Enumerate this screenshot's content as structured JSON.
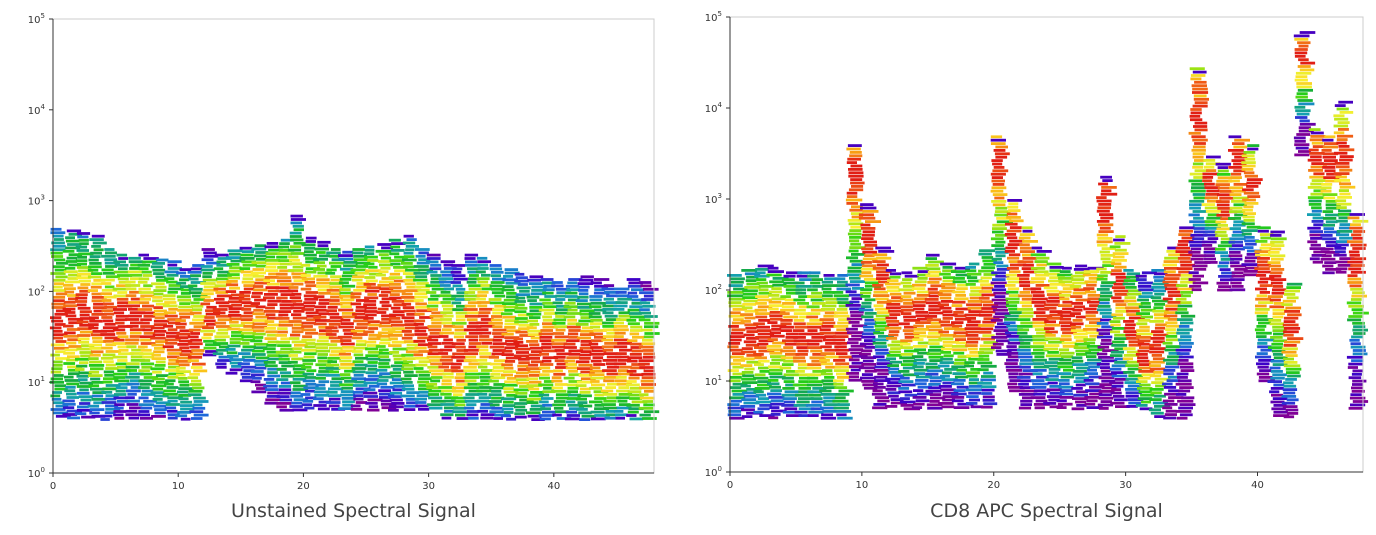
{
  "charts": [
    {
      "id": "left",
      "type": "heatmap",
      "xlabel": "Unstained Spectral Signal",
      "xlim": [
        0,
        48
      ],
      "ylim_log10": [
        0,
        5
      ],
      "x_ticks": [
        0,
        10,
        20,
        30,
        40
      ],
      "y_ticks": [
        {
          "exp": 0,
          "base": "10",
          "sup": "0"
        },
        {
          "exp": 1,
          "base": "10",
          "sup": "1"
        },
        {
          "exp": 2,
          "base": "10",
          "sup": "2"
        },
        {
          "exp": 3,
          "base": "10",
          "sup": "3"
        },
        {
          "exp": 4,
          "base": "10",
          "sup": "4"
        },
        {
          "exp": 5,
          "base": "10",
          "sup": "5"
        }
      ],
      "channels": [
        {
          "x": 0,
          "min": 4,
          "max": 500,
          "peak": 50
        },
        {
          "x": 1,
          "min": 4,
          "max": 480,
          "peak": 55
        },
        {
          "x": 2,
          "min": 4,
          "max": 450,
          "peak": 60
        },
        {
          "x": 3,
          "min": 4,
          "max": 420,
          "peak": 50
        },
        {
          "x": 4,
          "min": 4,
          "max": 300,
          "peak": 45
        },
        {
          "x": 5,
          "min": 4,
          "max": 260,
          "peak": 50
        },
        {
          "x": 6,
          "min": 4,
          "max": 240,
          "peak": 55
        },
        {
          "x": 7,
          "min": 4,
          "max": 260,
          "peak": 45
        },
        {
          "x": 8,
          "min": 4,
          "max": 230,
          "peak": 40
        },
        {
          "x": 9,
          "min": 4,
          "max": 220,
          "peak": 35
        },
        {
          "x": 10,
          "min": 4,
          "max": 180,
          "peak": 30
        },
        {
          "x": 11,
          "min": 4,
          "max": 200,
          "peak": 30
        },
        {
          "x": 12,
          "min": 20,
          "max": 300,
          "peak": 60
        },
        {
          "x": 13,
          "min": 15,
          "max": 260,
          "peak": 70
        },
        {
          "x": 14,
          "min": 12,
          "max": 290,
          "peak": 75
        },
        {
          "x": 15,
          "min": 10,
          "max": 310,
          "peak": 80
        },
        {
          "x": 16,
          "min": 8,
          "max": 330,
          "peak": 80
        },
        {
          "x": 17,
          "min": 6,
          "max": 350,
          "peak": 75
        },
        {
          "x": 18,
          "min": 5,
          "max": 380,
          "peak": 75
        },
        {
          "x": 19,
          "min": 5,
          "max": 700,
          "peak": 70
        },
        {
          "x": 20,
          "min": 5,
          "max": 400,
          "peak": 65
        },
        {
          "x": 21,
          "min": 5,
          "max": 360,
          "peak": 60
        },
        {
          "x": 22,
          "min": 5,
          "max": 300,
          "peak": 55
        },
        {
          "x": 23,
          "min": 5,
          "max": 280,
          "peak": 40
        },
        {
          "x": 24,
          "min": 5,
          "max": 300,
          "peak": 65
        },
        {
          "x": 25,
          "min": 5,
          "max": 320,
          "peak": 70
        },
        {
          "x": 26,
          "min": 5,
          "max": 340,
          "peak": 70
        },
        {
          "x": 27,
          "min": 5,
          "max": 380,
          "peak": 65
        },
        {
          "x": 28,
          "min": 5,
          "max": 420,
          "peak": 55
        },
        {
          "x": 29,
          "min": 5,
          "max": 300,
          "peak": 40
        },
        {
          "x": 30,
          "min": 5,
          "max": 260,
          "peak": 30
        },
        {
          "x": 31,
          "min": 4,
          "max": 220,
          "peak": 25
        },
        {
          "x": 32,
          "min": 4,
          "max": 200,
          "peak": 20
        },
        {
          "x": 33,
          "min": 4,
          "max": 260,
          "peak": 35
        },
        {
          "x": 34,
          "min": 4,
          "max": 240,
          "peak": 40
        },
        {
          "x": 35,
          "min": 4,
          "max": 200,
          "peak": 30
        },
        {
          "x": 36,
          "min": 4,
          "max": 180,
          "peak": 25
        },
        {
          "x": 37,
          "min": 4,
          "max": 160,
          "peak": 22
        },
        {
          "x": 38,
          "min": 4,
          "max": 150,
          "peak": 20
        },
        {
          "x": 39,
          "min": 4,
          "max": 140,
          "peak": 25
        },
        {
          "x": 40,
          "min": 4,
          "max": 130,
          "peak": 20
        },
        {
          "x": 41,
          "min": 4,
          "max": 140,
          "peak": 25
        },
        {
          "x": 42,
          "min": 4,
          "max": 150,
          "peak": 20
        },
        {
          "x": 43,
          "min": 4,
          "max": 140,
          "peak": 20
        },
        {
          "x": 44,
          "min": 4,
          "max": 120,
          "peak": 18
        },
        {
          "x": 45,
          "min": 4,
          "max": 110,
          "peak": 20
        },
        {
          "x": 46,
          "min": 4,
          "max": 140,
          "peak": 18
        },
        {
          "x": 47,
          "min": 4,
          "max": 130,
          "peak": 15
        }
      ]
    },
    {
      "id": "right",
      "type": "heatmap",
      "xlabel": "CD8 APC Spectral Signal",
      "xlim": [
        0,
        48
      ],
      "ylim_log10": [
        0,
        5
      ],
      "x_ticks": [
        0,
        10,
        20,
        30,
        40
      ],
      "y_ticks": [
        {
          "exp": 0,
          "base": "10",
          "sup": "0"
        },
        {
          "exp": 1,
          "base": "10",
          "sup": "1"
        },
        {
          "exp": 2,
          "base": "10",
          "sup": "2"
        },
        {
          "exp": 3,
          "base": "10",
          "sup": "3"
        },
        {
          "exp": 4,
          "base": "10",
          "sup": "4"
        },
        {
          "exp": 5,
          "base": "10",
          "sup": "5"
        }
      ],
      "channels": [
        {
          "x": 0,
          "min": 4,
          "max": 150,
          "peak": 30
        },
        {
          "x": 1,
          "min": 4,
          "max": 170,
          "peak": 35
        },
        {
          "x": 2,
          "min": 4,
          "max": 190,
          "peak": 35
        },
        {
          "x": 3,
          "min": 4,
          "max": 180,
          "peak": 40
        },
        {
          "x": 4,
          "min": 4,
          "max": 160,
          "peak": 35
        },
        {
          "x": 5,
          "min": 4,
          "max": 160,
          "peak": 30
        },
        {
          "x": 6,
          "min": 4,
          "max": 160,
          "peak": 30
        },
        {
          "x": 7,
          "min": 4,
          "max": 150,
          "peak": 30
        },
        {
          "x": 8,
          "min": 4,
          "max": 150,
          "peak": 25
        },
        {
          "x": 9,
          "min": 10,
          "max": 4000,
          "peak": 2000
        },
        {
          "x": 10,
          "min": 8,
          "max": 900,
          "peak": 400
        },
        {
          "x": 11,
          "min": 5,
          "max": 300,
          "peak": 150
        },
        {
          "x": 12,
          "min": 5,
          "max": 170,
          "peak": 60
        },
        {
          "x": 13,
          "min": 5,
          "max": 160,
          "peak": 50
        },
        {
          "x": 14,
          "min": 5,
          "max": 180,
          "peak": 60
        },
        {
          "x": 15,
          "min": 5,
          "max": 250,
          "peak": 70
        },
        {
          "x": 16,
          "min": 5,
          "max": 200,
          "peak": 60
        },
        {
          "x": 17,
          "min": 5,
          "max": 180,
          "peak": 50
        },
        {
          "x": 18,
          "min": 5,
          "max": 200,
          "peak": 45
        },
        {
          "x": 19,
          "min": 5,
          "max": 280,
          "peak": 60
        },
        {
          "x": 20,
          "min": 20,
          "max": 5000,
          "peak": 2500
        },
        {
          "x": 21,
          "min": 8,
          "max": 1000,
          "peak": 350
        },
        {
          "x": 22,
          "min": 5,
          "max": 500,
          "peak": 150
        },
        {
          "x": 23,
          "min": 5,
          "max": 300,
          "peak": 80
        },
        {
          "x": 24,
          "min": 5,
          "max": 200,
          "peak": 60
        },
        {
          "x": 25,
          "min": 5,
          "max": 180,
          "peak": 50
        },
        {
          "x": 26,
          "min": 5,
          "max": 190,
          "peak": 60
        },
        {
          "x": 27,
          "min": 5,
          "max": 180,
          "peak": 70
        },
        {
          "x": 28,
          "min": 5,
          "max": 1800,
          "peak": 900
        },
        {
          "x": 29,
          "min": 5,
          "max": 400,
          "peak": 120
        },
        {
          "x": 30,
          "min": 5,
          "max": 170,
          "peak": 40
        },
        {
          "x": 31,
          "min": 5,
          "max": 160,
          "peak": 20
        },
        {
          "x": 32,
          "min": 4,
          "max": 170,
          "peak": 25
        },
        {
          "x": 33,
          "min": 4,
          "max": 300,
          "peak": 100
        },
        {
          "x": 34,
          "min": 4,
          "max": 500,
          "peak": 300
        },
        {
          "x": 35,
          "min": 100,
          "max": 28000,
          "peak": 8000
        },
        {
          "x": 36,
          "min": 200,
          "max": 3000,
          "peak": 1500
        },
        {
          "x": 37,
          "min": 100,
          "max": 2500,
          "peak": 900
        },
        {
          "x": 38,
          "min": 100,
          "max": 5000,
          "peak": 2500
        },
        {
          "x": 39,
          "min": 150,
          "max": 4000,
          "peak": 1500
        },
        {
          "x": 40,
          "min": 10,
          "max": 500,
          "peak": 150
        },
        {
          "x": 41,
          "min": 4,
          "max": 450,
          "peak": 120
        },
        {
          "x": 42,
          "min": 4,
          "max": 120,
          "peak": 40
        },
        {
          "x": 43,
          "min": 3000,
          "max": 70000,
          "peak": 40000
        },
        {
          "x": 44,
          "min": 200,
          "max": 6000,
          "peak": 3000
        },
        {
          "x": 45,
          "min": 150,
          "max": 5000,
          "peak": 2500
        },
        {
          "x": 46,
          "min": 150,
          "max": 12000,
          "peak": 3000
        },
        {
          "x": 47,
          "min": 5,
          "max": 700,
          "peak": 250
        }
      ]
    }
  ]
}
